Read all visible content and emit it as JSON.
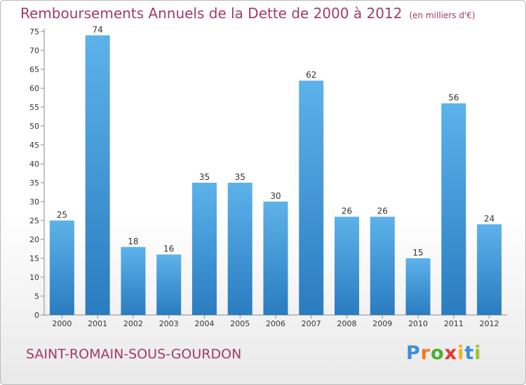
{
  "title": "Remboursements Annuels de la Dette de 2000 à 2012",
  "unit": "(en milliers d'€)",
  "commune": "SAINT-ROMAIN-SOUS-GOURDON",
  "logo": {
    "letters": [
      "P",
      "r",
      "o",
      "x",
      "i",
      "t",
      "i"
    ],
    "colors": [
      "#3b8fd8",
      "#f07a1c",
      "#4caf2d",
      "#e8342e",
      "#f0b21c",
      "#3b8fd8",
      "#9dc42c"
    ]
  },
  "colors": {
    "bar_top": "#5db2ea",
    "bar_bottom": "#2a7cc0",
    "text": "#a23a6d"
  },
  "chart_data": {
    "type": "bar",
    "categories": [
      "2000",
      "2001",
      "2002",
      "2003",
      "2004",
      "2005",
      "2006",
      "2007",
      "2008",
      "2009",
      "2010",
      "2011",
      "2012"
    ],
    "values": [
      25,
      74,
      18,
      16,
      35,
      35,
      30,
      62,
      26,
      26,
      15,
      56,
      24
    ],
    "ylim": [
      0,
      75
    ],
    "yticks": [
      0,
      5,
      10,
      15,
      20,
      25,
      30,
      35,
      40,
      45,
      50,
      55,
      60,
      65,
      70,
      75
    ],
    "grid": false,
    "data_labels": true
  }
}
